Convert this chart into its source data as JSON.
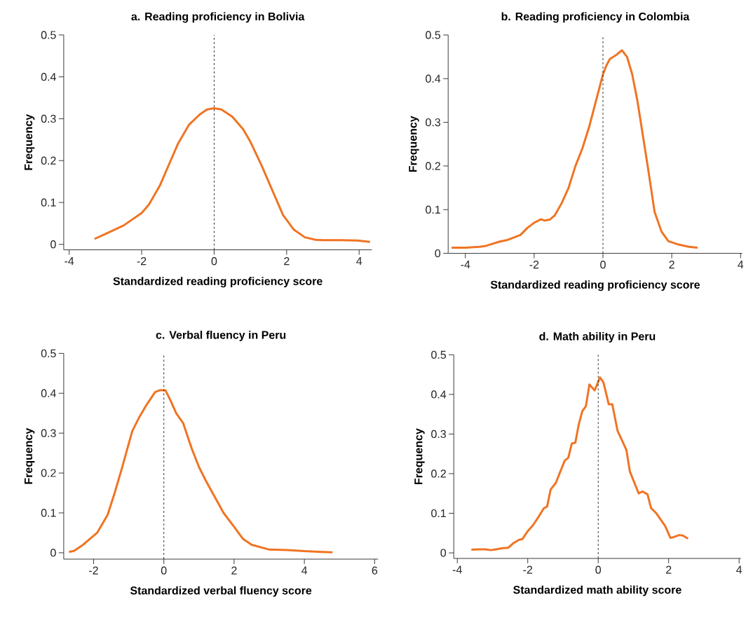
{
  "chart_data": [
    {
      "type": "line",
      "title": "a. Reading proficiency in Bolivia",
      "xlabel": "Standardized reading proficiency score",
      "ylabel": "Frequency",
      "xlim": [
        -4.15,
        4.35
      ],
      "ylim": [
        -0.013,
        0.5
      ],
      "xticks": [
        -4,
        -2,
        0,
        2,
        4
      ],
      "yticks": [
        0,
        0.1,
        0.2,
        0.3,
        0.4,
        0.5
      ],
      "grid": false,
      "ref_lines": [
        {
          "axis": "x",
          "value": 0,
          "line_style": "dashed",
          "color": "#231f20"
        }
      ],
      "series": [
        {
          "color": "#f07423",
          "x": [
            -3.3,
            -3.0,
            -2.5,
            -2.0,
            -1.8,
            -1.5,
            -1.2,
            -1.0,
            -0.7,
            -0.4,
            -0.2,
            0,
            0.2,
            0.5,
            0.8,
            1.0,
            1.3,
            1.6,
            1.9,
            2.2,
            2.5,
            2.8,
            3.0,
            3.5,
            4.0,
            4.3
          ],
          "values": [
            0.013,
            0.025,
            0.045,
            0.075,
            0.095,
            0.14,
            0.2,
            0.24,
            0.285,
            0.31,
            0.322,
            0.325,
            0.322,
            0.305,
            0.275,
            0.245,
            0.19,
            0.13,
            0.07,
            0.035,
            0.017,
            0.011,
            0.01,
            0.01,
            0.009,
            0.006
          ]
        }
      ]
    },
    {
      "type": "line",
      "title": "b. Reading proficiency in Colombia",
      "xlabel": "Standardized reading proficiency score",
      "ylabel": "Frequency",
      "xlim": [
        -4.5,
        4.05
      ],
      "ylim": [
        0,
        0.5
      ],
      "xticks": [
        -4,
        -2,
        0,
        2,
        4
      ],
      "yticks": [
        0,
        0.1,
        0.2,
        0.3,
        0.4,
        0.5
      ],
      "grid": false,
      "ref_lines": [
        {
          "axis": "x",
          "value": 0,
          "line_style": "dashed",
          "color": "#231f20"
        }
      ],
      "series": [
        {
          "color": "#f07423",
          "x": [
            -4.4,
            -4.0,
            -3.6,
            -3.4,
            -3.0,
            -2.8,
            -2.4,
            -2.2,
            -2.0,
            -1.8,
            -1.7,
            -1.55,
            -1.4,
            -1.2,
            -1.0,
            -0.8,
            -0.6,
            -0.4,
            -0.2,
            0,
            0.1,
            0.2,
            0.4,
            0.55,
            0.7,
            0.85,
            1.0,
            1.1,
            1.3,
            1.5,
            1.7,
            1.9,
            2.2,
            2.5,
            2.75
          ],
          "values": [
            0.013,
            0.013,
            0.015,
            0.017,
            0.027,
            0.03,
            0.042,
            0.058,
            0.07,
            0.078,
            0.075,
            0.077,
            0.087,
            0.115,
            0.15,
            0.2,
            0.24,
            0.29,
            0.35,
            0.41,
            0.43,
            0.445,
            0.455,
            0.465,
            0.45,
            0.41,
            0.35,
            0.3,
            0.2,
            0.095,
            0.05,
            0.028,
            0.02,
            0.015,
            0.013
          ]
        }
      ]
    },
    {
      "type": "line",
      "title": "c. Verbal fluency in Peru",
      "xlabel": "Standardized verbal fluency score",
      "ylabel": "Frequency",
      "xlim": [
        -2.85,
        6.1
      ],
      "ylim": [
        -0.016,
        0.5
      ],
      "xticks": [
        -2,
        0,
        2,
        4,
        6
      ],
      "yticks": [
        0,
        0.1,
        0.2,
        0.3,
        0.4,
        0.5
      ],
      "grid": false,
      "ref_lines": [
        {
          "axis": "x",
          "value": 0,
          "line_style": "dashed",
          "color": "#231f20"
        }
      ],
      "series": [
        {
          "color": "#f07423",
          "x": [
            -2.7,
            -2.55,
            -2.3,
            -2.1,
            -1.9,
            -1.6,
            -1.4,
            -1.2,
            -0.9,
            -0.7,
            -0.5,
            -0.25,
            -0.1,
            0.05,
            0.2,
            0.35,
            0.55,
            0.8,
            1.0,
            1.2,
            1.45,
            1.7,
            2.0,
            2.25,
            2.5,
            3.0,
            3.5,
            4.0,
            4.5,
            4.8
          ],
          "values": [
            0.002,
            0.005,
            0.02,
            0.035,
            0.05,
            0.095,
            0.15,
            0.21,
            0.305,
            0.34,
            0.37,
            0.403,
            0.408,
            0.407,
            0.38,
            0.35,
            0.325,
            0.26,
            0.215,
            0.18,
            0.14,
            0.1,
            0.065,
            0.035,
            0.02,
            0.008,
            0.007,
            0.004,
            0.002,
            0.001
          ]
        }
      ]
    },
    {
      "type": "line",
      "title": "d. Math ability in Peru",
      "xlabel": "Standardized math ability score",
      "ylabel": "Frequency",
      "xlim": [
        -4.1,
        4.05
      ],
      "ylim": [
        -0.014,
        0.5
      ],
      "xticks": [
        -4,
        -2,
        0,
        2,
        4
      ],
      "yticks": [
        0,
        0.1,
        0.2,
        0.3,
        0.4,
        0.5
      ],
      "grid": false,
      "ref_lines": [
        {
          "axis": "x",
          "value": 0,
          "line_style": "dashed",
          "color": "#231f20"
        }
      ],
      "series": [
        {
          "color": "#f07423",
          "x": [
            -3.6,
            -3.4,
            -3.2,
            -3.05,
            -2.9,
            -2.7,
            -2.55,
            -2.4,
            -2.25,
            -2.15,
            -2.0,
            -1.85,
            -1.7,
            -1.55,
            -1.45,
            -1.35,
            -1.2,
            -1.1,
            -0.95,
            -0.85,
            -0.75,
            -0.65,
            -0.55,
            -0.45,
            -0.35,
            -0.25,
            -0.1,
            0.05,
            0.15,
            0.3,
            0.4,
            0.55,
            0.8,
            0.9,
            1.15,
            1.25,
            1.4,
            1.5,
            1.65,
            1.9,
            2.05,
            2.15,
            2.3,
            2.4,
            2.55
          ],
          "values": [
            0.008,
            0.009,
            0.009,
            0.007,
            0.009,
            0.012,
            0.013,
            0.025,
            0.033,
            0.035,
            0.055,
            0.07,
            0.09,
            0.112,
            0.117,
            0.16,
            0.177,
            0.2,
            0.233,
            0.24,
            0.276,
            0.278,
            0.325,
            0.358,
            0.37,
            0.425,
            0.41,
            0.443,
            0.43,
            0.375,
            0.375,
            0.308,
            0.26,
            0.205,
            0.15,
            0.155,
            0.148,
            0.113,
            0.1,
            0.068,
            0.038,
            0.04,
            0.045,
            0.044,
            0.036
          ]
        }
      ]
    }
  ]
}
